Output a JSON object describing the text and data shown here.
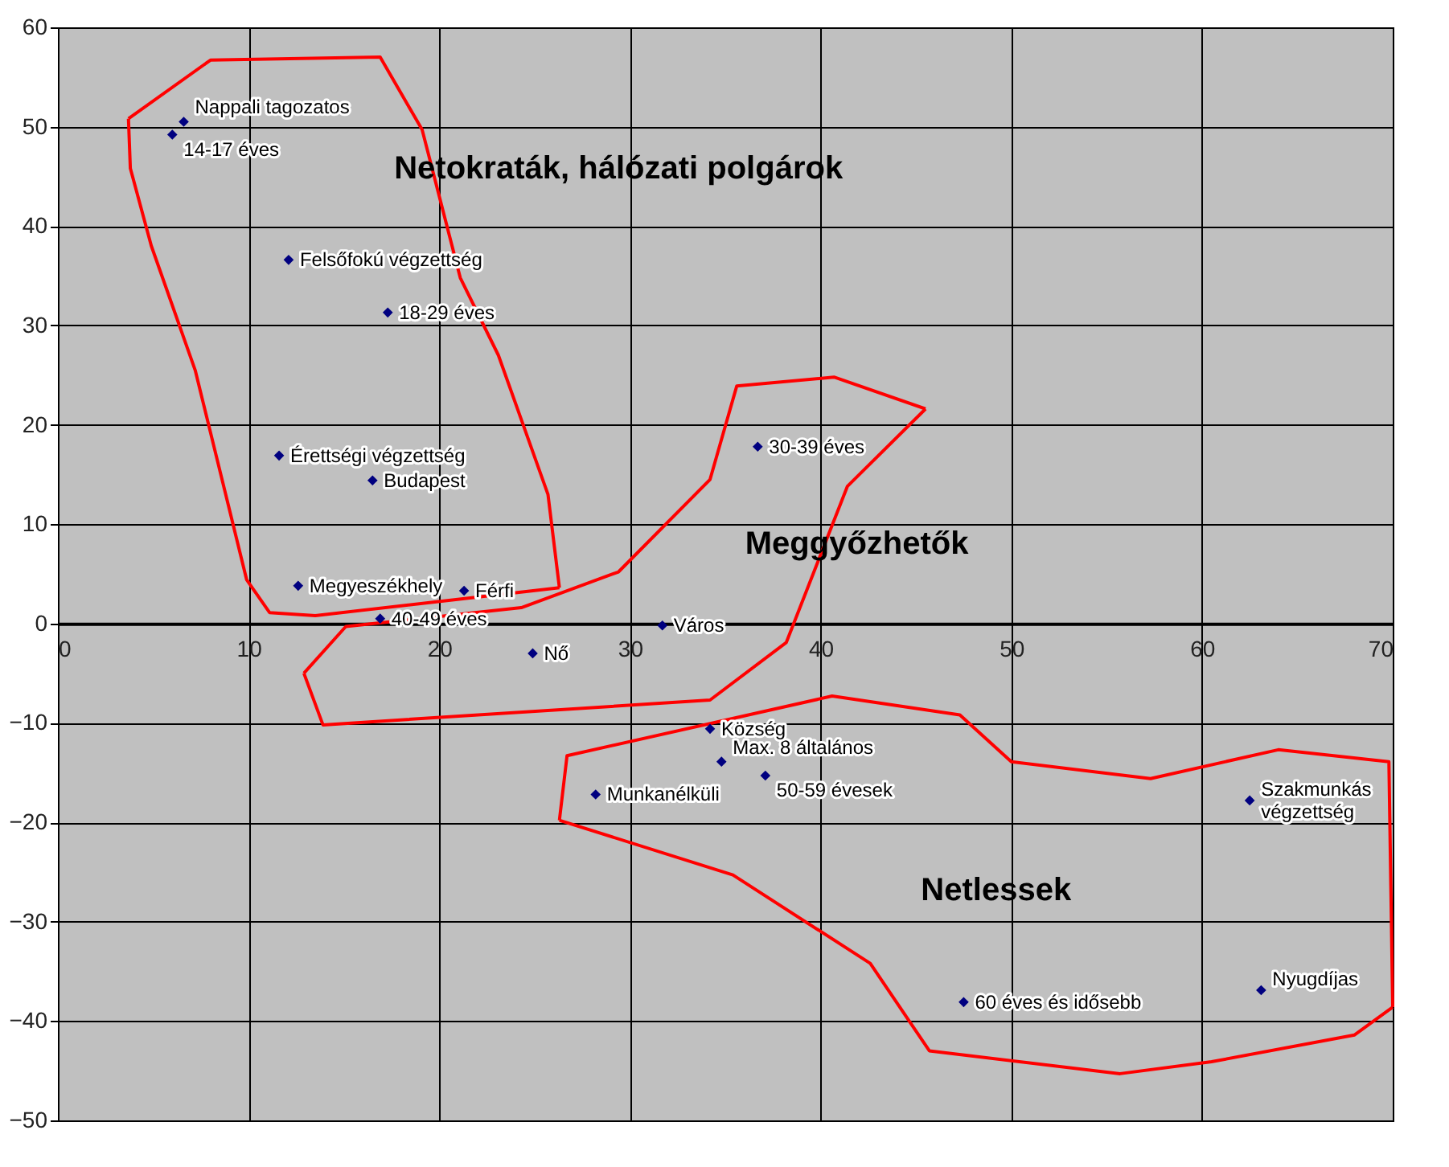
{
  "chart_data": {
    "type": "scatter",
    "xlim": [
      0,
      70
    ],
    "ylim": [
      -50,
      60
    ],
    "xticks": [
      0,
      10,
      20,
      30,
      40,
      50,
      60,
      70
    ],
    "yticks": [
      -50,
      -40,
      -30,
      -20,
      -10,
      0,
      10,
      20,
      30,
      40,
      50,
      60
    ],
    "grid": true,
    "marker": "diamond",
    "series": [
      {
        "type": "line",
        "marker": "none",
        "color": "#ff0000",
        "x": [
          3.7,
          8.0,
          16.9,
          19.1,
          21.1,
          23.1,
          25.7,
          26.3
        ],
        "values": [
          50.8,
          56.7,
          57.0,
          49.7,
          34.8,
          27.0,
          13.0,
          3.6
        ]
      },
      {
        "type": "line",
        "marker": "none",
        "color": "#ff0000",
        "x": [
          3.7,
          3.8,
          4.9,
          7.2,
          9.9,
          11.1,
          13.5,
          26.3
        ],
        "values": [
          50.8,
          45.8,
          38.0,
          25.5,
          4.4,
          1.1,
          0.8,
          3.6
        ]
      },
      {
        "type": "line",
        "marker": "none",
        "color": "#ff0000",
        "x": [
          12.9,
          15.1,
          24.3,
          29.4,
          34.2,
          35.6,
          40.7,
          45.5
        ],
        "values": [
          -5.0,
          -0.3,
          1.6,
          5.2,
          14.5,
          23.9,
          24.8,
          21.6
        ]
      },
      {
        "type": "line",
        "marker": "none",
        "color": "#ff0000",
        "x": [
          12.9,
          13.9,
          34.2,
          38.2,
          41.4,
          45.5
        ],
        "values": [
          -5.0,
          -10.2,
          -7.7,
          -1.9,
          13.8,
          21.6
        ]
      },
      {
        "type": "line",
        "marker": "none",
        "color": "#ff0000",
        "x": [
          26.3,
          26.7,
          40.6,
          47.3,
          50.0,
          57.3,
          64.0,
          69.8,
          70.0
        ],
        "values": [
          -19.8,
          -13.3,
          -7.3,
          -9.2,
          -13.9,
          -15.6,
          -12.7,
          -13.9,
          -38.6
        ]
      },
      {
        "type": "line",
        "marker": "none",
        "color": "#ff0000",
        "x": [
          26.3,
          35.4,
          42.6,
          45.7,
          55.7,
          60.5,
          68.0,
          70.0
        ],
        "values": [
          -19.8,
          -25.3,
          -34.2,
          -43.0,
          -45.3,
          -44.1,
          -41.4,
          -38.6
        ]
      },
      {
        "color": "#000080",
        "x": [
          6.6,
          6.0,
          12.1,
          17.3,
          11.6,
          16.5,
          36.7,
          12.6,
          21.3,
          16.9,
          24.9,
          31.7,
          34.2,
          34.8,
          37.1,
          28.2,
          62.5,
          47.5,
          63.1
        ],
        "values": [
          50.5,
          49.2,
          36.6,
          31.3,
          16.9,
          14.4,
          17.8,
          3.8,
          3.3,
          0.5,
          -3.0,
          -0.2,
          -10.6,
          -13.9,
          -15.3,
          -17.2,
          -17.8,
          -38.1,
          -36.9
        ]
      }
    ],
    "annotations": [
      {
        "text": "Nappali tagozatos",
        "x": 6.6,
        "y": 50.5
      },
      {
        "text": "14-17 éves",
        "x": 6.0,
        "y": 49.2
      },
      {
        "text": "Felsőfokú végzettség",
        "x": 12.1,
        "y": 36.6
      },
      {
        "text": "18-29 éves",
        "x": 17.3,
        "y": 31.3
      },
      {
        "text": "Érettségi végzettség",
        "x": 11.6,
        "y": 16.9
      },
      {
        "text": "Budapest",
        "x": 16.5,
        "y": 14.4
      },
      {
        "text": "30-39 éves",
        "x": 36.7,
        "y": 17.8
      },
      {
        "text": "Megyeszékhely",
        "x": 12.6,
        "y": 3.8
      },
      {
        "text": "Férfi",
        "x": 21.3,
        "y": 3.3
      },
      {
        "text": "40-49 éves",
        "x": 16.9,
        "y": 0.5
      },
      {
        "text": "Nő",
        "x": 24.9,
        "y": -3.0
      },
      {
        "text": "Város",
        "x": 31.7,
        "y": -0.2
      },
      {
        "text": "Község",
        "x": 34.2,
        "y": -10.6
      },
      {
        "text": "Max. 8 általános",
        "x": 34.8,
        "y": -13.9
      },
      {
        "text": "50-59 évesek",
        "x": 37.1,
        "y": -15.3
      },
      {
        "text": "Munkanélküli",
        "x": 28.2,
        "y": -17.2
      },
      {
        "text": "Szakmunkás végzettség",
        "x": 62.5,
        "y": -17.8
      },
      {
        "text": "60 éves és idősebb",
        "x": 47.5,
        "y": -38.1
      },
      {
        "text": "Nyugdíjas",
        "x": 63.1,
        "y": -36.9
      },
      "Netokraták, hálózati polgárok",
      "Meggyőzhetők",
      "Netlessek"
    ]
  }
}
